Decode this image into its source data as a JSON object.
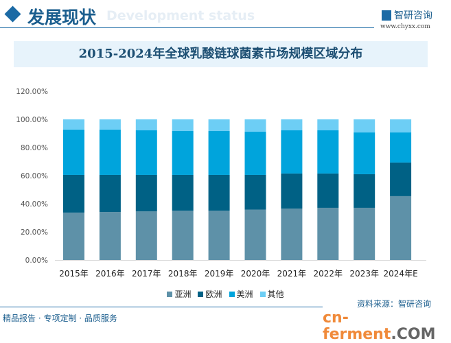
{
  "header": {
    "title": "发展现状",
    "subtitle_watermark": "Development status",
    "logo_text": "智研咨询",
    "logo_url": "www.chyxx.com"
  },
  "footer": {
    "tagline": "精品报告 · 专项定制 · 品质服务",
    "source": "资料来源：智研咨询",
    "watermark_main": "cn-ferment",
    "watermark_suffix": ".COM"
  },
  "colors": {
    "亚洲": "#5e91a8",
    "欧洲": "#006185",
    "美洲": "#00a4dc",
    "其他": "#6dcef5"
  },
  "chart_data": {
    "type": "bar",
    "stacked": "percent",
    "title": "2015-2024年全球乳酸链球菌素市场规模区域分布",
    "categories": [
      "2015年",
      "2016年",
      "2017年",
      "2018年",
      "2019年",
      "2020年",
      "2021年",
      "2022年",
      "2023年",
      "2024年E"
    ],
    "series": [
      {
        "name": "亚洲",
        "values": [
          33.7,
          34.1,
          34.6,
          35.1,
          35.1,
          35.8,
          36.6,
          37.1,
          37.1,
          45.4
        ]
      },
      {
        "name": "欧洲",
        "values": [
          26.8,
          26.4,
          25.9,
          25.4,
          25.4,
          24.7,
          24.9,
          24.4,
          23.9,
          23.9
        ]
      },
      {
        "name": "美洲",
        "values": [
          32.2,
          32.2,
          31.7,
          31.2,
          31.2,
          30.7,
          30.7,
          30.7,
          29.7,
          21.4
        ]
      },
      {
        "name": "其他",
        "values": [
          7.3,
          7.3,
          7.8,
          8.3,
          8.3,
          8.8,
          7.8,
          7.8,
          9.3,
          9.3
        ]
      }
    ],
    "yticks": [
      "0.00%",
      "20.00%",
      "40.00%",
      "60.00%",
      "80.00%",
      "100.00%",
      "120.00%"
    ],
    "ylim": [
      0,
      120
    ],
    "grid": false,
    "legend": "bottom"
  }
}
